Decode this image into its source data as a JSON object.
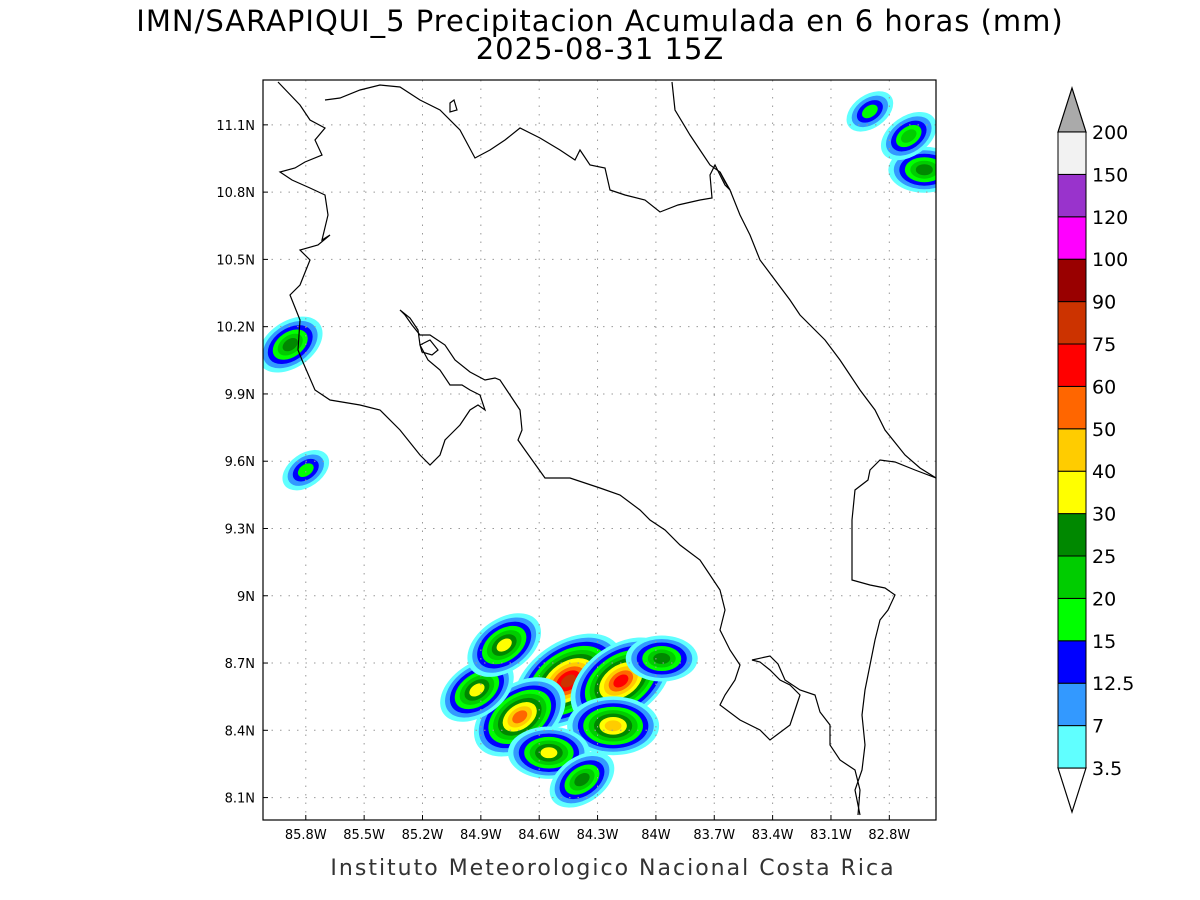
{
  "title": {
    "line1": "IMN/SARAPIQUI_5 Precipitacion Acumulada en 6 horas (mm)",
    "line2": "2025-08-31 15Z"
  },
  "footer": "Instituto Meteorologico Nacional Costa Rica",
  "chart_data": {
    "type": "heatmap",
    "lon_range": [
      -86.02,
      -82.56
    ],
    "lat_range": [
      8.0,
      11.3
    ],
    "lon_ticks": [
      {
        "value": -85.8,
        "label": "85.8W"
      },
      {
        "value": -85.5,
        "label": "85.5W"
      },
      {
        "value": -85.2,
        "label": "85.2W"
      },
      {
        "value": -84.9,
        "label": "84.9W"
      },
      {
        "value": -84.6,
        "label": "84.6W"
      },
      {
        "value": -84.3,
        "label": "84.3W"
      },
      {
        "value": -84.0,
        "label": "84W"
      },
      {
        "value": -83.7,
        "label": "83.7W"
      },
      {
        "value": -83.4,
        "label": "83.4W"
      },
      {
        "value": -83.1,
        "label": "83.1W"
      },
      {
        "value": -82.8,
        "label": "82.8W"
      }
    ],
    "lat_ticks": [
      {
        "value": 8.1,
        "label": "8.1N"
      },
      {
        "value": 8.4,
        "label": "8.4N"
      },
      {
        "value": 8.7,
        "label": "8.7N"
      },
      {
        "value": 9.0,
        "label": "9N"
      },
      {
        "value": 9.3,
        "label": "9.3N"
      },
      {
        "value": 9.6,
        "label": "9.6N"
      },
      {
        "value": 9.9,
        "label": "9.9N"
      },
      {
        "value": 10.2,
        "label": "10.2N"
      },
      {
        "value": 10.5,
        "label": "10.5N"
      },
      {
        "value": 10.8,
        "label": "10.8N"
      },
      {
        "value": 11.1,
        "label": "11.1N"
      }
    ],
    "grid": true,
    "colorbar": {
      "levels": [
        "3.5",
        "7",
        "12.5",
        "15",
        "20",
        "25",
        "30",
        "40",
        "50",
        "60",
        "75",
        "90",
        "100",
        "120",
        "150",
        "200"
      ],
      "colors": [
        "#60ffff",
        "#3399ff",
        "#0000ff",
        "#00ff00",
        "#00cc00",
        "#008800",
        "#ffff00",
        "#ffcc00",
        "#ff6600",
        "#ff0000",
        "#cc3300",
        "#990000",
        "#ff00ff",
        "#9933cc",
        "#f2f2f2"
      ],
      "over_color": "#aaaaaa",
      "under_color": "#ffffff"
    },
    "cells": [
      {
        "lon": -84.45,
        "lat": 8.62,
        "level": 10
      },
      {
        "lon": -84.18,
        "lat": 8.62,
        "level": 9
      },
      {
        "lon": -84.22,
        "lat": 8.42,
        "level": 7
      },
      {
        "lon": -84.7,
        "lat": 8.46,
        "level": 8
      },
      {
        "lon": -84.92,
        "lat": 8.58,
        "level": 6
      },
      {
        "lon": -84.55,
        "lat": 8.3,
        "level": 6
      },
      {
        "lon": -84.38,
        "lat": 8.18,
        "level": 5
      },
      {
        "lon": -84.78,
        "lat": 8.78,
        "level": 6
      },
      {
        "lon": -83.97,
        "lat": 8.72,
        "level": 5
      },
      {
        "lon": -85.88,
        "lat": 10.12,
        "level": 5
      },
      {
        "lon": -85.8,
        "lat": 9.56,
        "level": 3
      },
      {
        "lon": -82.62,
        "lat": 10.9,
        "level": 5
      },
      {
        "lon": -82.7,
        "lat": 11.05,
        "level": 4
      },
      {
        "lon": -82.9,
        "lat": 11.16,
        "level": 3
      }
    ]
  }
}
